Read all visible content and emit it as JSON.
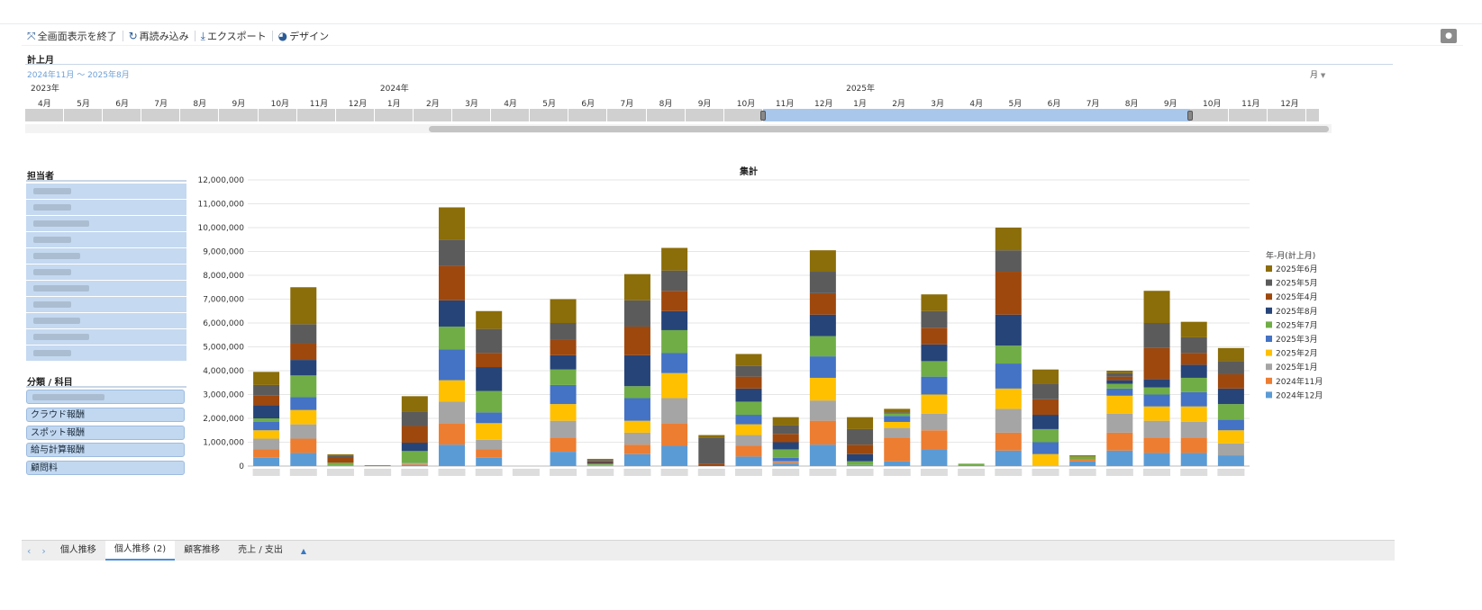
{
  "toolbar": {
    "fullscreen_label": "全画面表示を終了",
    "reload_label": "再読み込み",
    "export_label": "エクスポート",
    "design_label": "デザイン"
  },
  "timeline": {
    "title": "計上月",
    "range": "2024年11月 ～ 2025年8月",
    "unit": "月",
    "years": [
      {
        "label": "2023年",
        "month_index": 0
      },
      {
        "label": "2024年",
        "month_index": 9
      },
      {
        "label": "2025年",
        "month_index": 21
      }
    ],
    "months": [
      "4月",
      "5月",
      "6月",
      "7月",
      "8月",
      "9月",
      "10月",
      "11月",
      "12月",
      "1月",
      "2月",
      "3月",
      "4月",
      "5月",
      "6月",
      "7月",
      "8月",
      "9月",
      "10月",
      "11月",
      "12月",
      "1月",
      "2月",
      "3月",
      "4月",
      "5月",
      "6月",
      "7月",
      "8月",
      "9月",
      "10月",
      "11月",
      "12月"
    ],
    "selected_start_index": 19,
    "selected_end_index": 29
  },
  "filters": {
    "person_title": "担当者",
    "category_title": "分類 / 科目",
    "categories": [
      "クラウド報酬",
      "スポット報酬",
      "給与計算報酬",
      "顧問料"
    ]
  },
  "chart_data": {
    "type": "bar",
    "stacked": true,
    "title": "集計",
    "legend_title": "年-月(計上月)",
    "ylim": [
      0,
      12000000
    ],
    "yticks": [
      "0",
      "1,000,000",
      "2,000,000",
      "3,000,000",
      "4,000,000",
      "5,000,000",
      "6,000,000",
      "7,000,000",
      "8,000,000",
      "9,000,000",
      "10,000,000",
      "11,000,000",
      "12,000,000"
    ],
    "categories_hidden": true,
    "bar_count": 27,
    "series": [
      {
        "name": "2024年12月",
        "color": "#5b9bd5",
        "values": [
          350000,
          550000,
          20000,
          0,
          50000,
          900000,
          350000,
          0,
          600000,
          0,
          500000,
          850000,
          0,
          400000,
          100000,
          900000,
          50000,
          200000,
          700000,
          0,
          650000,
          0,
          200000,
          650000,
          550000,
          550000,
          450000
        ]
      },
      {
        "name": "2024年11月",
        "color": "#ed7d31",
        "values": [
          350000,
          600000,
          10000,
          0,
          30000,
          900000,
          350000,
          0,
          600000,
          0,
          400000,
          950000,
          0,
          450000,
          50000,
          1000000,
          0,
          1000000,
          800000,
          0,
          750000,
          0,
          100000,
          750000,
          650000,
          650000,
          0
        ]
      },
      {
        "name": "2025年1月",
        "color": "#a5a5a5",
        "values": [
          450000,
          600000,
          10000,
          0,
          50000,
          900000,
          400000,
          0,
          700000,
          50000,
          500000,
          1050000,
          0,
          450000,
          50000,
          850000,
          0,
          400000,
          700000,
          0,
          1000000,
          0,
          0,
          800000,
          700000,
          650000,
          500000
        ]
      },
      {
        "name": "2025年2月",
        "color": "#ffc000",
        "values": [
          350000,
          600000,
          0,
          0,
          0,
          900000,
          700000,
          0,
          700000,
          0,
          500000,
          1050000,
          0,
          450000,
          0,
          950000,
          0,
          250000,
          800000,
          0,
          850000,
          500000,
          0,
          750000,
          600000,
          650000,
          550000
        ]
      },
      {
        "name": "2025年3月",
        "color": "#4472c4",
        "values": [
          350000,
          550000,
          0,
          0,
          0,
          1300000,
          450000,
          0,
          800000,
          0,
          950000,
          850000,
          0,
          400000,
          150000,
          900000,
          0,
          250000,
          750000,
          0,
          1050000,
          500000,
          0,
          300000,
          500000,
          600000,
          450000
        ]
      },
      {
        "name": "2025年7月",
        "color": "#70ad47",
        "values": [
          150000,
          900000,
          100000,
          0,
          500000,
          950000,
          900000,
          0,
          650000,
          50000,
          500000,
          950000,
          0,
          550000,
          350000,
          850000,
          150000,
          100000,
          650000,
          100000,
          750000,
          550000,
          100000,
          200000,
          300000,
          600000,
          650000
        ]
      },
      {
        "name": "2025年8月",
        "color": "#264478",
        "values": [
          550000,
          650000,
          0,
          0,
          350000,
          1100000,
          1000000,
          0,
          600000,
          50000,
          1300000,
          800000,
          0,
          550000,
          300000,
          900000,
          300000,
          0,
          700000,
          0,
          1300000,
          600000,
          0,
          150000,
          350000,
          550000,
          650000
        ]
      },
      {
        "name": "2025年4月",
        "color": "#9e480e",
        "values": [
          400000,
          700000,
          200000,
          0,
          700000,
          1450000,
          600000,
          0,
          650000,
          50000,
          1200000,
          850000,
          100000,
          500000,
          350000,
          900000,
          400000,
          0,
          700000,
          0,
          1800000,
          650000,
          0,
          150000,
          1300000,
          500000,
          600000
        ]
      },
      {
        "name": "2025年5月",
        "color": "#5b5b5b",
        "values": [
          450000,
          800000,
          100000,
          0,
          600000,
          1100000,
          1000000,
          0,
          700000,
          50000,
          1100000,
          850000,
          1100000,
          450000,
          350000,
          900000,
          650000,
          50000,
          700000,
          0,
          900000,
          650000,
          0,
          150000,
          1050000,
          650000,
          550000
        ]
      },
      {
        "name": "2025年6月",
        "color": "#8b6d09",
        "values": [
          550000,
          1550000,
          50000,
          30000,
          650000,
          1350000,
          750000,
          0,
          1000000,
          50000,
          1100000,
          950000,
          100000,
          500000,
          350000,
          900000,
          500000,
          150000,
          700000,
          0,
          950000,
          600000,
          50000,
          100000,
          1350000,
          650000,
          550000
        ]
      }
    ]
  },
  "tabs": {
    "items": [
      "個人推移",
      "個人推移 (2)",
      "顧客推移",
      "売上 / 支出"
    ],
    "active_index": 1
  }
}
